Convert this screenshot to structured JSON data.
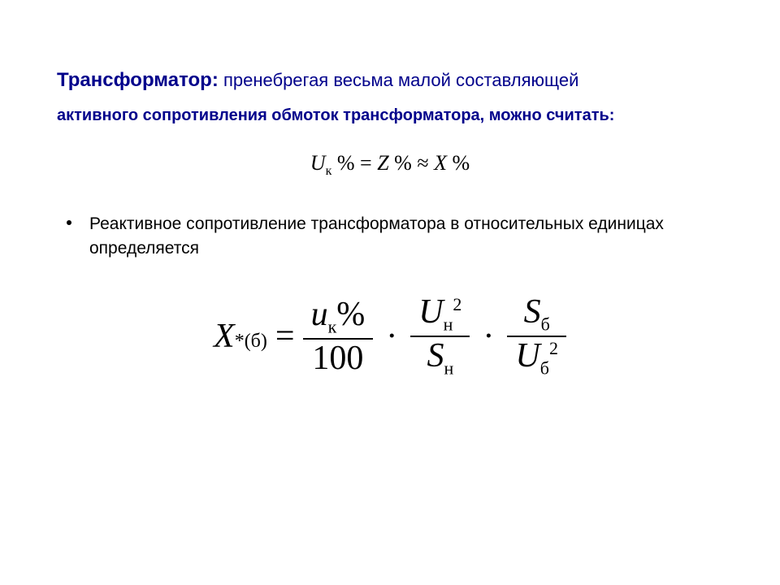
{
  "title": {
    "bold": "Трансформатор:",
    "line1_rest": " пренебрегая весьма малой составляющей",
    "line2": "активного сопротивления обмоток трансформатора, можно считать:"
  },
  "eq_top": {
    "U": "U",
    "k_sub": "к",
    "pct": " %",
    "eq": " = ",
    "Z": "Z",
    "approx": " ≈ ",
    "X": "X"
  },
  "bullet": "Реактивное сопротивление трансформатора в относительных единицах определяется",
  "formula": {
    "X": "X",
    "X_sub": "*(б)",
    "eq": "=",
    "f1_num_u": "u",
    "f1_num_sub": "к",
    "f1_num_pct": "%",
    "f1_den": "100",
    "dot": "·",
    "f2_num_U": "U",
    "f2_num_sub": "н",
    "f2_num_sup": "2",
    "f2_den_S": "S",
    "f2_den_sub": "н",
    "f3_num_S": "S",
    "f3_num_sub": "б",
    "f3_den_U": "U",
    "f3_den_sub": "б",
    "f3_den_sup": "2"
  },
  "style": {
    "title_color": "#00008b",
    "text_color": "#000000",
    "background": "#ffffff",
    "title_bold_fontsize": 24,
    "title_fontsize": 22,
    "title2_fontsize": 20,
    "eq1_fontsize": 26,
    "bullet_fontsize": 21,
    "formula_fontsize": 42,
    "sub_fontsize": 22
  }
}
